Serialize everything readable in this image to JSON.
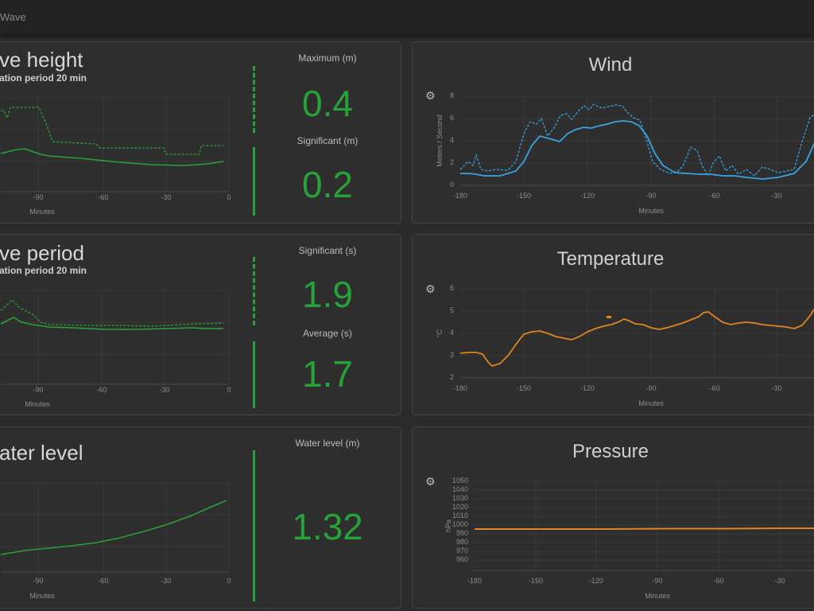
{
  "app": {
    "title": "Wave"
  },
  "panels": {
    "wave_height": {
      "title": "ve height",
      "subtitle": "ation period 20 min",
      "x_label": "Minutes",
      "ticks": [
        "-90",
        "-60",
        "-30",
        "0"
      ],
      "metrics": [
        {
          "label": "Maximum (m)",
          "value": "0.4"
        },
        {
          "label": "Significant (m)",
          "value": "0.2"
        }
      ]
    },
    "wave_period": {
      "title": "ve period",
      "subtitle": "ation period 20 min",
      "x_label": "Minutes",
      "ticks": [
        "-90",
        "-60",
        "-30",
        "0"
      ],
      "metrics": [
        {
          "label": "Significant (s)",
          "value": "1.9"
        },
        {
          "label": "Average (s)",
          "value": "1.7"
        }
      ]
    },
    "water_level": {
      "title": "ater level",
      "x_label": "Minutes",
      "ticks": [
        "-90",
        "-60",
        "-30",
        "0"
      ],
      "metrics": [
        {
          "label": "Water level (m)",
          "value": "1.32"
        }
      ]
    },
    "wind": {
      "title": "Wind",
      "y_label": "Meters / Second",
      "x_label": "Minutes",
      "yticks": [
        "8",
        "6",
        "4",
        "2",
        "0"
      ],
      "xticks": [
        "-180",
        "-150",
        "-120",
        "-90",
        "-60",
        "-30"
      ]
    },
    "temperature": {
      "title": "Temperature",
      "y_label": "°C",
      "x_label": "Minutes",
      "yticks": [
        "6",
        "5",
        "4",
        "3",
        "2"
      ],
      "xticks": [
        "-180",
        "-150",
        "-120",
        "-90",
        "-60",
        "-30"
      ]
    },
    "pressure": {
      "title": "Pressure",
      "y_label": "hPa",
      "x_label": "Minutes",
      "yticks": [
        "1050",
        "1040",
        "1030",
        "1020",
        "1010",
        "1000",
        "990",
        "980",
        "970",
        "960"
      ],
      "xticks": [
        "-180",
        "-150",
        "-120",
        "-90",
        "-60",
        "-30"
      ]
    }
  },
  "colors": {
    "green": "#2aa03c",
    "blue": "#3aa3e0",
    "orange": "#e08424"
  },
  "icons": {
    "settings": "gear-icon"
  }
}
